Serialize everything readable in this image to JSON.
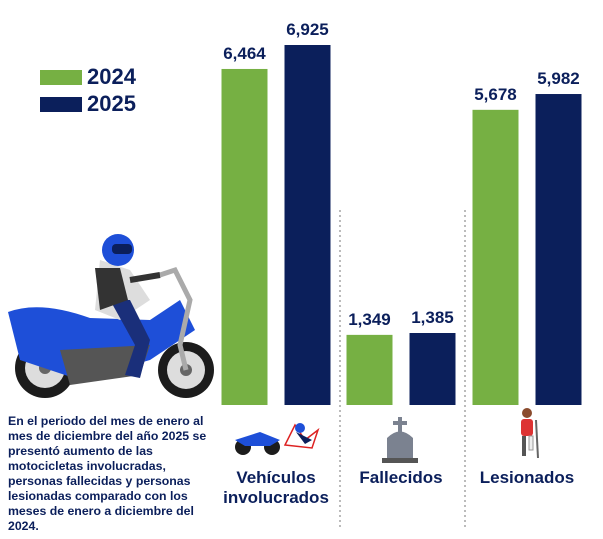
{
  "chart_data": {
    "type": "bar",
    "categories": [
      "Vehículos involucrados",
      "Fallecidos",
      "Lesionados"
    ],
    "series": [
      {
        "name": "2024",
        "color": "#76b043",
        "values": [
          6464,
          1349,
          5678
        ],
        "value_labels": [
          "6,464",
          "1,349",
          "5,678"
        ]
      },
      {
        "name": "2025",
        "color": "#0b1f5b",
        "values": [
          6925,
          1385,
          5982
        ],
        "value_labels": [
          "6,925",
          "1,385",
          "5,982"
        ]
      }
    ],
    "annotation": "En el periodo del mes de enero al mes de diciembre del año 2025 se presentó aumento de las motocicletas involucradas, personas fallecidas y personas lesionadas comparado con los meses de enero a diciembre del 2024."
  }
}
